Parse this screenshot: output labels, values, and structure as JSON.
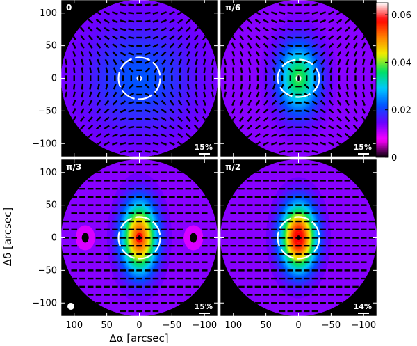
{
  "chart_data": {
    "type": "heatmap",
    "description_units": "polarization degree maps with polarization vectors",
    "xlabel": "Δα [arcsec]",
    "ylabel": "Δδ [arcsec]",
    "xlim": [
      120,
      -120
    ],
    "ylim": [
      -120,
      120
    ],
    "x_ticks": [
      100,
      50,
      0,
      -50,
      -100
    ],
    "y_ticks": [
      100,
      50,
      0,
      -50,
      -100
    ],
    "colorbar": {
      "range": [
        0,
        0.065
      ],
      "ticks": [
        0,
        0.02,
        0.04,
        0.06
      ],
      "tick_labels": [
        "0",
        "0.02",
        "0.04",
        "0.06"
      ],
      "colormap": [
        "#000000",
        "#ff00ff",
        "#6a00ff",
        "#0050ff",
        "#00c8ff",
        "#00e060",
        "#f0f000",
        "#ff8000",
        "#ff0000",
        "#ffffff"
      ]
    },
    "panels": [
      {
        "label": "0",
        "scale_label": "15%",
        "pattern": "azimuthal",
        "sx": 45,
        "sy": 45,
        "peak": 0.022,
        "ring_shape": "round",
        "beam": false
      },
      {
        "label": "π/6",
        "scale_label": "15%",
        "pattern": "azimuthal",
        "sx": 18,
        "sy": 30,
        "peak": 0.038,
        "ring_shape": "flattened",
        "beam": false
      },
      {
        "label": "π/3",
        "scale_label": "15%",
        "pattern": "horizontal",
        "sx": 15,
        "sy": 30,
        "peak": 0.055,
        "ring_shape": "round",
        "beam": true,
        "holes_x": [
          83,
          -83
        ]
      },
      {
        "label": "π/2",
        "scale_label": "14%",
        "pattern": "horizontal",
        "sx": 15,
        "sy": 28,
        "peak": 0.06,
        "ring_shape": "round",
        "beam": false
      }
    ],
    "contour_radius": 32
  }
}
